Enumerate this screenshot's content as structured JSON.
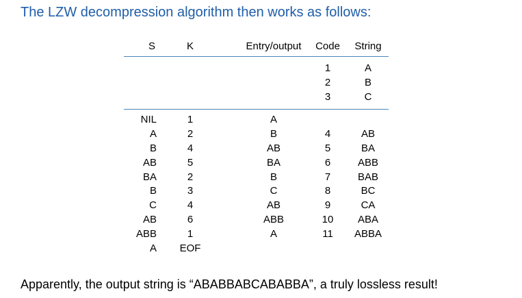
{
  "title": "The LZW decompression algorithm then works as follows:",
  "colors": {
    "title": "#1f5ea8",
    "rule": "#4a86b8"
  },
  "table": {
    "headers": {
      "s": "S",
      "k": "K",
      "entry_output": "Entry/output",
      "code": "Code",
      "string": "String"
    },
    "initial_rows": [
      {
        "code": "1",
        "string": "A"
      },
      {
        "code": "2",
        "string": "B"
      },
      {
        "code": "3",
        "string": "C"
      }
    ],
    "rows": [
      {
        "s": "NIL",
        "k": "1",
        "entry": "A",
        "code": "",
        "string": ""
      },
      {
        "s": "A",
        "k": "2",
        "entry": "B",
        "code": "4",
        "string": "AB"
      },
      {
        "s": "B",
        "k": "4",
        "entry": "AB",
        "code": "5",
        "string": "BA"
      },
      {
        "s": "AB",
        "k": "5",
        "entry": "BA",
        "code": "6",
        "string": "ABB"
      },
      {
        "s": "BA",
        "k": "2",
        "entry": "B",
        "code": "7",
        "string": "BAB"
      },
      {
        "s": "B",
        "k": "3",
        "entry": "C",
        "code": "8",
        "string": "BC"
      },
      {
        "s": "C",
        "k": "4",
        "entry": "AB",
        "code": "9",
        "string": "CA"
      },
      {
        "s": "AB",
        "k": "6",
        "entry": "ABB",
        "code": "10",
        "string": "ABA"
      },
      {
        "s": "ABB",
        "k": "1",
        "entry": "A",
        "code": "11",
        "string": "ABBA"
      },
      {
        "s": "A",
        "k": "EOF",
        "entry": "",
        "code": "",
        "string": ""
      }
    ]
  },
  "footer": "Apparently, the output string is “ABABBABCABABBA”, a truly lossless result!"
}
